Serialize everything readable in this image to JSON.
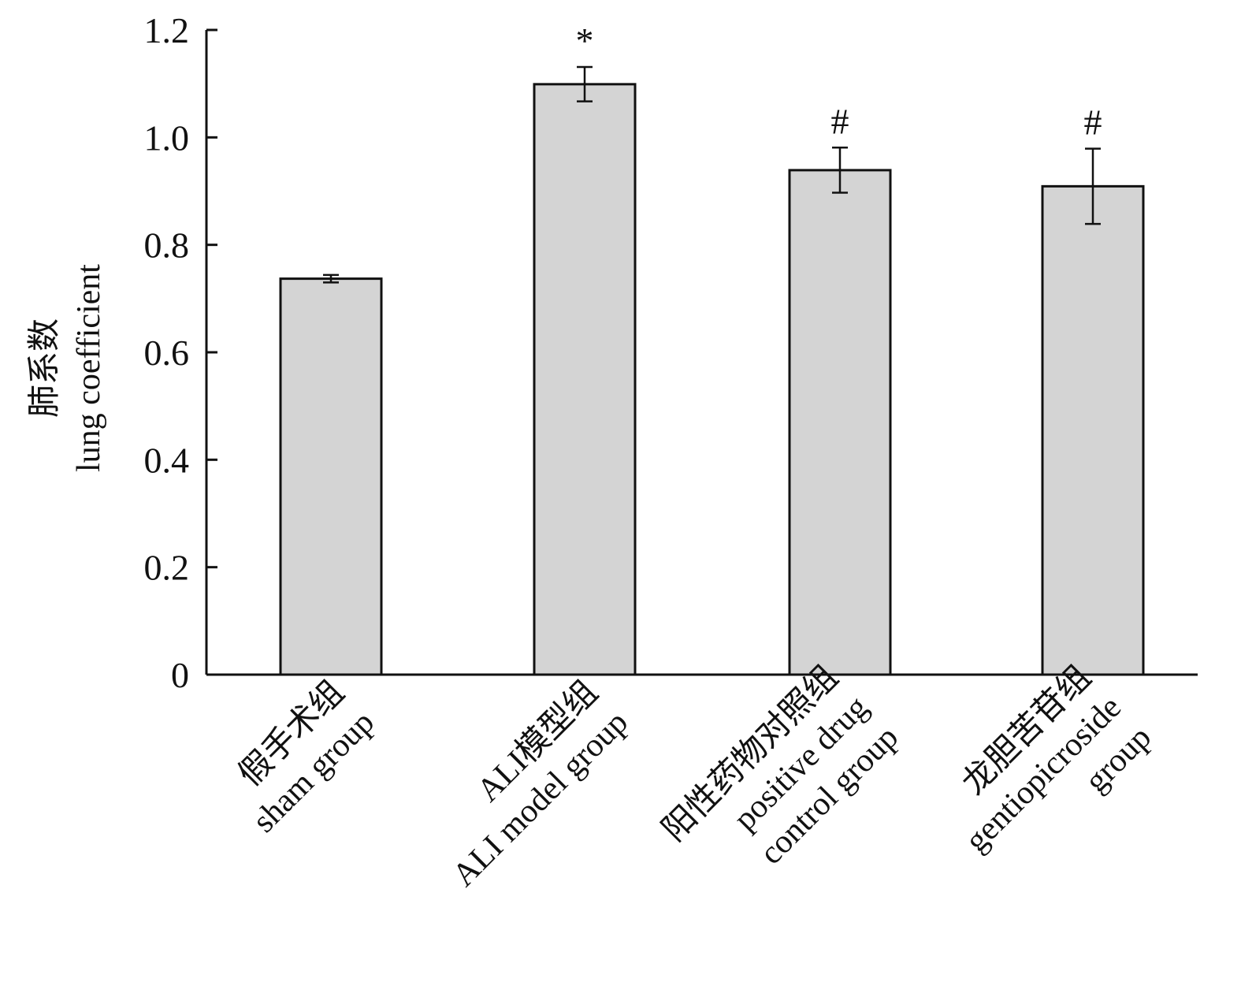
{
  "chart_data": {
    "type": "bar",
    "title": "",
    "ylabel_lines": [
      "肺系数",
      "lung coefficient"
    ],
    "xlabel": "",
    "ylim": [
      0,
      1.2
    ],
    "yticks": [
      0,
      0.2,
      0.4,
      0.6,
      0.8,
      1.0,
      1.2
    ],
    "ytick_labels": [
      "0",
      "0.2",
      "0.4",
      "0.6",
      "0.8",
      "1.0",
      "1.2"
    ],
    "categories": [
      {
        "id": "sham",
        "lines": [
          "假手术组",
          "sham group"
        ]
      },
      {
        "id": "ali-model",
        "lines": [
          "ALI模型组",
          "ALI model group"
        ]
      },
      {
        "id": "positive-control",
        "lines": [
          "阳性药物对照组",
          "positive drug",
          "control group"
        ]
      },
      {
        "id": "gentiopicroside",
        "lines": [
          "龙胆苦苷组",
          "gentiopicroside",
          "group"
        ]
      }
    ],
    "values": [
      0.737,
      1.099,
      0.939,
      0.909
    ],
    "errors": [
      0.007,
      0.032,
      0.042,
      0.07
    ],
    "annotations": [
      "",
      "*",
      "#",
      "#"
    ],
    "bar_fill": "#d4d4d4",
    "bar_stroke": "#111111"
  }
}
